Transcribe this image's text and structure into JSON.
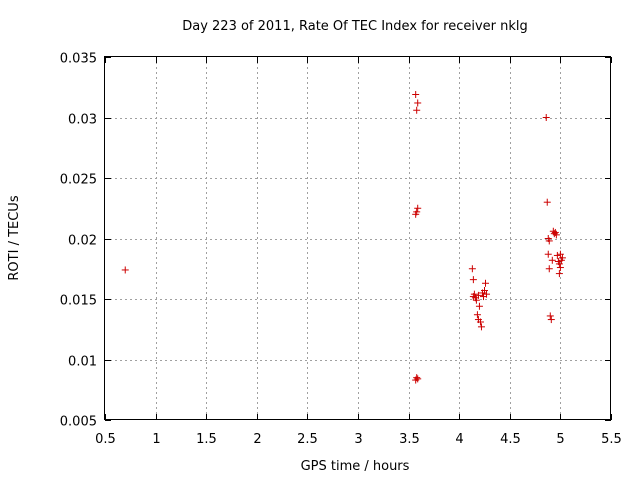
{
  "chart_data": {
    "type": "scatter",
    "title": "Day 223 of 2011, Rate Of TEC Index for receiver nklg",
    "xlabel": "GPS time / hours",
    "ylabel": "ROTI / TECUs",
    "xlim": [
      0.5,
      5.5
    ],
    "ylim": [
      0.005,
      0.035
    ],
    "xticks": [
      0.5,
      1,
      1.5,
      2,
      2.5,
      3,
      3.5,
      4,
      4.5,
      5,
      5.5
    ],
    "xtick_labels": [
      "0.5",
      "1",
      "1.5",
      "2",
      "2.5",
      "3",
      "3.5",
      "4",
      "4.5",
      "5",
      "5.5"
    ],
    "yticks": [
      0.005,
      0.01,
      0.015,
      0.02,
      0.025,
      0.03,
      0.035
    ],
    "ytick_labels": [
      "0.005",
      "0.01",
      "0.015",
      "0.02",
      "0.025",
      "0.03",
      "0.035"
    ],
    "grid": true,
    "marker": "+",
    "color": "#cc0000",
    "series": [
      {
        "points": [
          [
            0.7,
            0.0174
          ],
          [
            3.57,
            0.0319
          ],
          [
            3.59,
            0.0312
          ],
          [
            3.58,
            0.0306
          ],
          [
            3.59,
            0.0225
          ],
          [
            3.58,
            0.0222
          ],
          [
            3.57,
            0.022
          ],
          [
            3.58,
            0.0085
          ],
          [
            3.59,
            0.0084
          ],
          [
            3.57,
            0.0083
          ],
          [
            4.13,
            0.0175
          ],
          [
            4.14,
            0.0166
          ],
          [
            4.15,
            0.0154
          ],
          [
            4.14,
            0.0152
          ],
          [
            4.16,
            0.0151
          ],
          [
            4.17,
            0.0149
          ],
          [
            4.19,
            0.0153
          ],
          [
            4.2,
            0.0144
          ],
          [
            4.18,
            0.0137
          ],
          [
            4.19,
            0.0133
          ],
          [
            4.21,
            0.0131
          ],
          [
            4.22,
            0.0127
          ],
          [
            4.23,
            0.0155
          ],
          [
            4.24,
            0.0152
          ],
          [
            4.25,
            0.0157
          ],
          [
            4.26,
            0.0163
          ],
          [
            4.27,
            0.0154
          ],
          [
            4.86,
            0.03
          ],
          [
            4.87,
            0.023
          ],
          [
            4.88,
            0.02
          ],
          [
            4.89,
            0.0198
          ],
          [
            4.88,
            0.0187
          ],
          [
            4.89,
            0.0175
          ],
          [
            4.9,
            0.0136
          ],
          [
            4.91,
            0.0133
          ],
          [
            4.92,
            0.0182
          ],
          [
            4.93,
            0.0206
          ],
          [
            4.94,
            0.0204
          ],
          [
            4.95,
            0.0205
          ],
          [
            4.96,
            0.0203
          ],
          [
            4.97,
            0.0186
          ],
          [
            4.98,
            0.0181
          ],
          [
            4.99,
            0.0179
          ],
          [
            5.0,
            0.0187
          ],
          [
            5.01,
            0.0182
          ],
          [
            5.0,
            0.0176
          ],
          [
            4.99,
            0.0171
          ],
          [
            5.02,
            0.0184
          ]
        ]
      }
    ]
  }
}
